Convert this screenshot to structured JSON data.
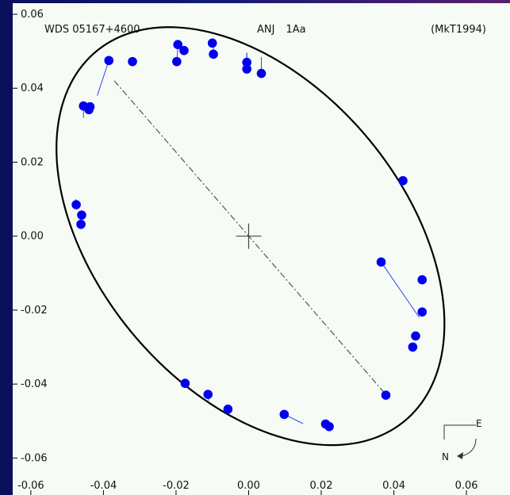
{
  "header": {
    "left": "WDS 05167+4600",
    "center_a": "ANJ",
    "center_b": "1Aa",
    "right": "(MkT1994)"
  },
  "chart_data": {
    "type": "scatter",
    "title": "",
    "xlabel": "",
    "ylabel": "",
    "xlim": [
      -0.065,
      0.072
    ],
    "ylim": [
      -0.07,
      0.063
    ],
    "x_ticks": [
      "-0.06",
      "-0.04",
      "-0.02",
      "0.00",
      "0.02",
      "0.04",
      "0.06"
    ],
    "x_tick_values": [
      -0.06,
      -0.04,
      -0.02,
      0.0,
      0.02,
      0.04,
      0.06
    ],
    "y_ticks": [
      "0.06",
      "0.04",
      "0.02",
      "0.00",
      "-0.02",
      "-0.04",
      "-0.06"
    ],
    "y_tick_values": [
      0.06,
      0.04,
      0.02,
      0.0,
      -0.02,
      -0.04,
      -0.06
    ],
    "grid": false,
    "orbit": {
      "center": [
        0.0005,
        0.0
      ],
      "semi_major": 0.0656,
      "semi_minor": 0.0418,
      "angle_deg": 131.2
    },
    "line_of_nodes": {
      "from": [
        -0.037,
        0.042
      ],
      "to": [
        0.0375,
        -0.0425
      ]
    },
    "primary": [
      0.0,
      0.0
    ],
    "colors": {
      "points": "#0000ee",
      "orbit": "#000000",
      "residual": "#3344ee",
      "nodes": "#555555"
    },
    "compass": {
      "east_label": "E",
      "north_label": "N"
    },
    "series": [
      {
        "points": [
          [
            -0.0385,
            0.0475
          ],
          [
            -0.032,
            0.0472
          ],
          [
            -0.0195,
            0.0518
          ],
          [
            -0.0198,
            0.0472
          ],
          [
            -0.0178,
            0.0502
          ],
          [
            -0.01,
            0.0522
          ],
          [
            -0.0097,
            0.0492
          ],
          [
            -0.0005,
            0.047
          ],
          [
            -0.0005,
            0.0452
          ],
          [
            0.0035,
            0.044
          ],
          [
            -0.0455,
            0.0352
          ],
          [
            -0.0437,
            0.035
          ],
          [
            -0.044,
            0.0342
          ],
          [
            -0.0475,
            0.0085
          ],
          [
            -0.046,
            0.0057
          ],
          [
            -0.0462,
            0.0032
          ],
          [
            0.0425,
            0.015
          ],
          [
            0.0365,
            -0.007
          ],
          [
            0.0478,
            -0.0118
          ],
          [
            0.0478,
            -0.0205
          ],
          [
            0.046,
            -0.027
          ],
          [
            0.0452,
            -0.03
          ],
          [
            0.0378,
            -0.043
          ],
          [
            -0.0175,
            -0.0398
          ],
          [
            -0.0112,
            -0.0428
          ],
          [
            -0.0057,
            -0.0468
          ],
          [
            0.0098,
            -0.0482
          ],
          [
            0.0212,
            -0.0508
          ],
          [
            0.0222,
            -0.0515
          ]
        ],
        "fitted": [
          [
            -0.0417,
            0.038
          ],
          [
            -0.0325,
            0.047
          ],
          [
            -0.019,
            0.0513
          ],
          [
            -0.0195,
            0.051
          ],
          [
            -0.0175,
            0.0514
          ],
          [
            -0.01,
            0.0512
          ],
          [
            -0.0097,
            0.0512
          ],
          [
            -0.0005,
            0.0496
          ],
          [
            -0.0005,
            0.0496
          ],
          [
            0.0035,
            0.0484
          ],
          [
            -0.0455,
            0.032
          ],
          [
            -0.0437,
            0.034
          ],
          [
            -0.044,
            0.0336
          ],
          [
            -0.0477,
            0.01
          ],
          [
            -0.0472,
            0.006
          ],
          [
            -0.047,
            0.004
          ],
          [
            0.042,
            0.0155
          ],
          [
            0.047,
            -0.022
          ],
          [
            0.048,
            -0.0125
          ],
          [
            0.0478,
            -0.02
          ],
          [
            0.047,
            -0.0265
          ],
          [
            0.046,
            -0.029
          ],
          [
            0.0378,
            -0.0428
          ],
          [
            -0.0175,
            -0.04
          ],
          [
            -0.011,
            -0.0445
          ],
          [
            -0.0057,
            -0.0472
          ],
          [
            0.015,
            -0.0507
          ],
          [
            0.0215,
            -0.0505
          ],
          [
            0.0222,
            -0.0503
          ]
        ]
      }
    ]
  }
}
